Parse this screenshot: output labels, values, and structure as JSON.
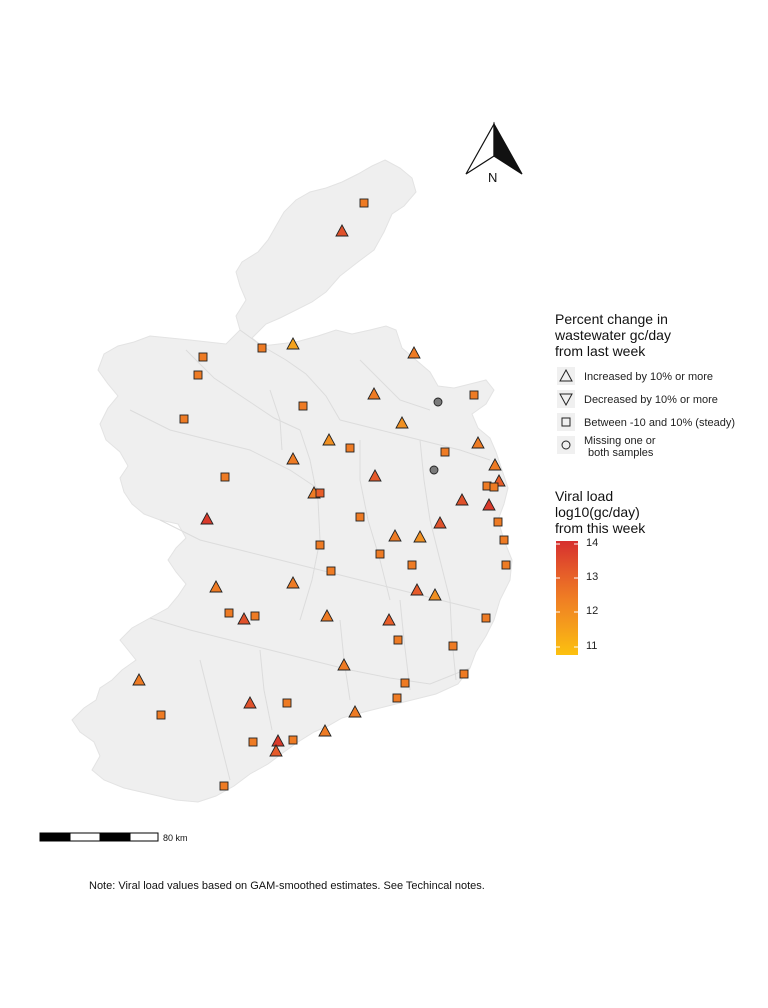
{
  "north": {
    "label": "N",
    "icon": "north-arrow-icon"
  },
  "legend_shape": {
    "title_lines": [
      "Percent change in",
      "wastewater gc/day",
      "from last week"
    ],
    "items": [
      {
        "shape": "triangle-up",
        "label_lines": [
          "Increased by 10% or more"
        ]
      },
      {
        "shape": "triangle-down",
        "label_lines": [
          "Decreased by 10% or more"
        ]
      },
      {
        "shape": "square",
        "label_lines": [
          "Between -10 and 10% (steady)"
        ]
      },
      {
        "shape": "circle",
        "label_lines": [
          "Missing one or",
          "both samples"
        ]
      }
    ]
  },
  "legend_color": {
    "title_lines": [
      "Viral load",
      "log10(gc/day)",
      "from this week"
    ],
    "ticks": [
      "14",
      "13",
      "12",
      "11"
    ],
    "gradient": [
      "#d62f2f",
      "#e4582a",
      "#ef7d24",
      "#f59e1c",
      "#fcc10f"
    ]
  },
  "scale_bar": {
    "label": "80 km"
  },
  "note": "Note: Viral load values based on GAM-smoothed estimates. See Techincal notes.",
  "colors": {
    "land": "#efefef",
    "border": "#dddddd",
    "missing": "#7a7a7a",
    "red": "#d93a2b",
    "orange_red": "#e4582a",
    "orange": "#ee7b24",
    "amber": "#f5a21c"
  },
  "sites": [
    {
      "shape": "square",
      "color": "#ee7b24"
    },
    {
      "shape": "tri-up",
      "color": "#e0512b"
    },
    {
      "shape": "square",
      "color": "#ee7b24"
    },
    {
      "shape": "tri-up",
      "color": "#f5a21c"
    },
    {
      "shape": "square",
      "color": "#ee7b24"
    },
    {
      "shape": "square",
      "color": "#ee7b24"
    },
    {
      "shape": "tri-up",
      "color": "#ee7b24"
    },
    {
      "shape": "square",
      "color": "#ee7b24"
    },
    {
      "shape": "square",
      "color": "#ee7b24"
    },
    {
      "shape": "tri-up",
      "color": "#ee7b24"
    },
    {
      "shape": "circle",
      "color": "#7a7a7a"
    },
    {
      "shape": "square",
      "color": "#ee7b24"
    },
    {
      "shape": "tri-up",
      "color": "#f09022"
    },
    {
      "shape": "tri-up",
      "color": "#f09022"
    },
    {
      "shape": "square",
      "color": "#ee7b24"
    },
    {
      "shape": "square",
      "color": "#ee7b24"
    },
    {
      "shape": "tri-up",
      "color": "#ee7b24"
    },
    {
      "shape": "tri-up",
      "color": "#e65a2a"
    },
    {
      "shape": "tri-up",
      "color": "#ee7b24"
    },
    {
      "shape": "square",
      "color": "#ee7b24"
    },
    {
      "shape": "circle",
      "color": "#7a7a7a"
    },
    {
      "shape": "tri-up",
      "color": "#ee7b24"
    },
    {
      "shape": "tri-up",
      "color": "#e85d29"
    },
    {
      "shape": "square",
      "color": "#ee7b24"
    },
    {
      "shape": "square",
      "color": "#ee7b24"
    },
    {
      "shape": "tri-up",
      "color": "#ee7b24"
    },
    {
      "shape": "square",
      "color": "#e85d29"
    },
    {
      "shape": "square",
      "color": "#ee7b24"
    },
    {
      "shape": "tri-up",
      "color": "#e0512b"
    },
    {
      "shape": "tri-up",
      "color": "#d93a2b"
    },
    {
      "shape": "tri-up",
      "color": "#d93a2b"
    },
    {
      "shape": "square",
      "color": "#ee7b24"
    },
    {
      "shape": "tri-up",
      "color": "#e0512b"
    },
    {
      "shape": "tri-up",
      "color": "#ee7b24"
    },
    {
      "shape": "tri-up",
      "color": "#f09022"
    },
    {
      "shape": "square",
      "color": "#ee7b24"
    },
    {
      "shape": "square",
      "color": "#ee7b24"
    },
    {
      "shape": "square",
      "color": "#ee7b24"
    },
    {
      "shape": "square",
      "color": "#ee7b24"
    },
    {
      "shape": "square",
      "color": "#ee7b24"
    },
    {
      "shape": "square",
      "color": "#ee7b24"
    },
    {
      "shape": "tri-up",
      "color": "#ee7b24"
    },
    {
      "shape": "tri-up",
      "color": "#e65a2a"
    },
    {
      "shape": "tri-up",
      "color": "#f09022"
    },
    {
      "shape": "square",
      "color": "#ee7b24"
    },
    {
      "shape": "square",
      "color": "#ee7b24"
    },
    {
      "shape": "tri-up",
      "color": "#e0512b"
    },
    {
      "shape": "square",
      "color": "#ee7b24"
    },
    {
      "shape": "tri-up",
      "color": "#ee7b24"
    },
    {
      "shape": "tri-up",
      "color": "#ee7b24"
    },
    {
      "shape": "tri-up",
      "color": "#e85d29"
    },
    {
      "shape": "square",
      "color": "#ee7b24"
    },
    {
      "shape": "square",
      "color": "#ee7b24"
    },
    {
      "shape": "tri-up",
      "color": "#ee7b24"
    },
    {
      "shape": "square",
      "color": "#ee7b24"
    },
    {
      "shape": "tri-up",
      "color": "#ee7b24"
    },
    {
      "shape": "square",
      "color": "#ee7b24"
    },
    {
      "shape": "square",
      "color": "#ee7b24"
    },
    {
      "shape": "square",
      "color": "#ee7b24"
    },
    {
      "shape": "tri-up",
      "color": "#e0512b"
    },
    {
      "shape": "square",
      "color": "#ee7b24"
    },
    {
      "shape": "tri-up",
      "color": "#ee7b24"
    },
    {
      "shape": "tri-up",
      "color": "#ee7b24"
    },
    {
      "shape": "tri-up",
      "color": "#d93a2b"
    },
    {
      "shape": "tri-up",
      "color": "#e65a2a"
    },
    {
      "shape": "square",
      "color": "#ee7b24"
    },
    {
      "shape": "square",
      "color": "#ee7b24"
    },
    {
      "shape": "square",
      "color": "#ee7b24"
    },
    {
      "shape": "square",
      "color": "#ee7b24"
    },
    {
      "shape": "square",
      "color": "#ee7b24"
    },
    {
      "shape": "tri-up",
      "color": "#ee7b24"
    },
    {
      "shape": "square",
      "color": "#ee7b24"
    }
  ]
}
